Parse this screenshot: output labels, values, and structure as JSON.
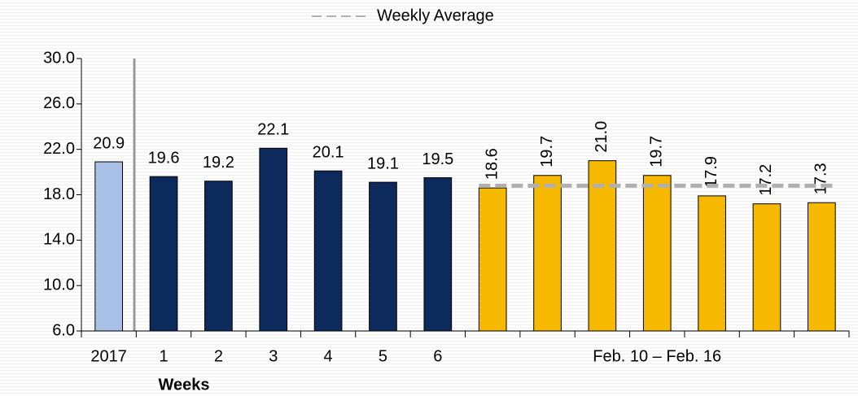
{
  "chart_data": {
    "type": "bar",
    "categories": [
      "2017",
      "1",
      "2",
      "3",
      "4",
      "5",
      "6",
      null,
      null,
      null,
      null,
      null,
      null,
      null
    ],
    "group_label": "Feb. 10 – Feb. 16",
    "values": [
      20.9,
      19.6,
      19.2,
      22.1,
      20.1,
      19.1,
      19.5,
      18.6,
      19.7,
      21.0,
      19.7,
      17.9,
      17.2,
      17.3
    ],
    "value_labels": [
      "20.9",
      "19.6",
      "19.2",
      "22.1",
      "20.1",
      "19.1",
      "19.5",
      "18.6",
      "19.7",
      "21.0",
      "19.7",
      "17.9",
      "17.2",
      "17.3"
    ],
    "colors": [
      "#a9c1e6",
      "#0c2a5c",
      "#0c2a5c",
      "#0c2a5c",
      "#0c2a5c",
      "#0c2a5c",
      "#0c2a5c",
      "#f7b900",
      "#f7b900",
      "#f7b900",
      "#f7b900",
      "#f7b900",
      "#f7b900",
      "#f7b900"
    ],
    "reference_line": {
      "name": "Weekly Average",
      "value": 18.8,
      "color": "#b0b0b0"
    },
    "x_label": "Weeks",
    "ylim": [
      6,
      30
    ],
    "yticks": [
      {
        "value": 6,
        "label": "6.0"
      },
      {
        "value": 10,
        "label": "10.0"
      },
      {
        "value": 14,
        "label": "14.0"
      },
      {
        "value": 18,
        "label": "18.0"
      },
      {
        "value": 22,
        "label": "22.0"
      },
      {
        "value": 26,
        "label": "26.0"
      },
      {
        "value": 30,
        "label": "30.0"
      }
    ],
    "legend": "top"
  }
}
